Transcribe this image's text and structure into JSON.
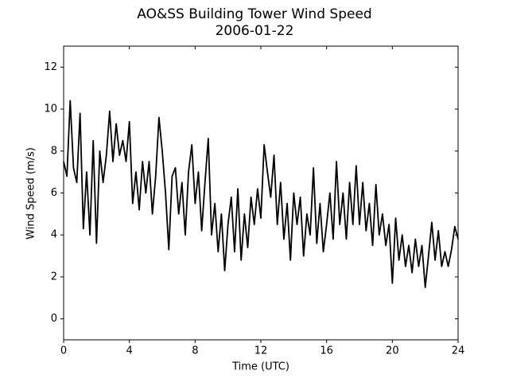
{
  "chart_data": {
    "type": "line",
    "title": "AO&SS Building Tower Wind Speed",
    "subtitle": "2006-01-22",
    "x_label": "Time (UTC)",
    "y_label": "Wind Speed (m/s)",
    "color": "#000000",
    "xlim": [
      0,
      24
    ],
    "xticks": [
      0,
      4,
      8,
      12,
      16,
      20,
      24
    ],
    "ylim": [
      -1,
      13
    ],
    "yticks": [
      0,
      2,
      4,
      6,
      8,
      10,
      12
    ],
    "grid": false,
    "x": [
      0,
      0.2,
      0.4,
      0.6,
      0.8,
      1,
      1.2,
      1.4,
      1.6,
      1.8,
      2,
      2.2,
      2.4,
      2.6,
      2.8,
      3,
      3.2,
      3.4,
      3.6,
      3.8,
      4,
      4.2,
      4.4,
      4.6,
      4.8,
      5,
      5.2,
      5.4,
      5.6,
      5.8,
      6,
      6.2,
      6.4,
      6.6,
      6.8,
      7,
      7.2,
      7.4,
      7.6,
      7.8,
      8,
      8.2,
      8.4,
      8.6,
      8.8,
      9,
      9.2,
      9.4,
      9.6,
      9.8,
      10,
      10.2,
      10.4,
      10.6,
      10.8,
      11,
      11.2,
      11.4,
      11.6,
      11.8,
      12,
      12.2,
      12.4,
      12.6,
      12.8,
      13,
      13.2,
      13.4,
      13.6,
      13.8,
      14,
      14.2,
      14.4,
      14.6,
      14.8,
      15,
      15.2,
      15.4,
      15.6,
      15.8,
      16,
      16.2,
      16.4,
      16.6,
      16.8,
      17,
      17.2,
      17.4,
      17.6,
      17.8,
      18,
      18.2,
      18.4,
      18.6,
      18.8,
      19,
      19.2,
      19.4,
      19.6,
      19.8,
      20,
      20.2,
      20.4,
      20.6,
      20.8,
      21,
      21.2,
      21.4,
      21.6,
      21.8,
      22,
      22.2,
      22.4,
      22.6,
      22.8,
      23,
      23.2,
      23.4,
      23.6,
      23.8,
      24
    ],
    "values": [
      7.5,
      6.8,
      10.4,
      7.2,
      6.5,
      9.8,
      4.3,
      7.0,
      4.0,
      8.5,
      3.6,
      8.0,
      6.5,
      7.8,
      9.9,
      7.5,
      9.3,
      7.8,
      8.5,
      7.5,
      9.4,
      5.5,
      7.0,
      5.2,
      7.5,
      6.0,
      7.5,
      5.0,
      6.8,
      9.6,
      8.0,
      6.0,
      3.3,
      6.8,
      7.2,
      5.0,
      6.5,
      4.0,
      7.0,
      8.3,
      5.5,
      7.0,
      4.2,
      6.5,
      8.6,
      4.0,
      5.5,
      3.2,
      5.0,
      2.3,
      4.5,
      5.8,
      3.2,
      6.2,
      2.8,
      5.0,
      3.4,
      5.8,
      4.5,
      6.2,
      4.8,
      8.3,
      7.0,
      5.8,
      7.8,
      4.5,
      6.5,
      3.8,
      5.5,
      2.8,
      6.0,
      4.5,
      5.8,
      3.0,
      5.0,
      4.0,
      7.2,
      3.6,
      5.5,
      3.2,
      4.5,
      6.0,
      3.8,
      7.5,
      4.5,
      6.0,
      3.8,
      6.5,
      4.5,
      7.3,
      4.5,
      6.5,
      4.2,
      5.5,
      3.5,
      6.4,
      4.0,
      5.0,
      3.5,
      4.5,
      1.7,
      4.8,
      2.8,
      4.0,
      2.5,
      3.5,
      2.2,
      3.8,
      2.5,
      3.5,
      1.5,
      3.0,
      4.6,
      2.8,
      4.2,
      2.5,
      3.2,
      2.5,
      3.3,
      4.4,
      3.8
    ]
  }
}
